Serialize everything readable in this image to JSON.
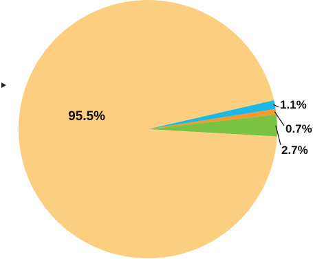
{
  "chart_data": {
    "type": "pie",
    "title": "",
    "legend": "none",
    "slices": [
      {
        "label": "95.5%",
        "value": 95.5,
        "color": "#fcce7f"
      },
      {
        "label": "1.1%",
        "value": 1.1,
        "color": "#1ab9e6"
      },
      {
        "label": "0.7%",
        "value": 0.7,
        "color": "#f29a2e"
      },
      {
        "label": "2.7%",
        "value": 2.7,
        "color": "#7cc242"
      }
    ]
  }
}
